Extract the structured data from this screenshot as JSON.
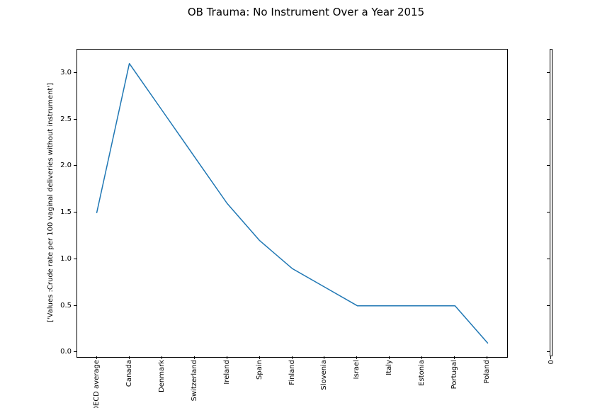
{
  "title": "OB Trauma: No Instrument Over a Year 2015",
  "chart_data": {
    "type": "line",
    "title": "OB Trauma: No Instrument Over a Year 2015",
    "xlabel": "",
    "ylabel": "['Values :Crude rate per 100 vaginal deliveries without instrument']",
    "categories": [
      "OECD average",
      "Canada",
      "Denmark",
      "Switzerland",
      "Ireland",
      "Spain",
      "Finland",
      "Slovenia",
      "Israel",
      "Italy",
      "Estonia",
      "Portugal",
      "Poland"
    ],
    "values": [
      1.5,
      3.1,
      2.6,
      2.1,
      1.6,
      1.2,
      0.9,
      0.7,
      0.5,
      0.5,
      0.5,
      0.5,
      0.1
    ],
    "yticks": [
      0.0,
      0.5,
      1.0,
      1.5,
      2.0,
      2.5,
      3.0
    ],
    "ytick_labels": [
      "0.0",
      "0.5",
      "1.0",
      "1.5",
      "2.0",
      "2.5",
      "3.0"
    ],
    "xlim": [
      -0.6,
      12.6
    ],
    "ylim": [
      -0.05,
      3.25
    ],
    "grid": false,
    "legend": null,
    "line_color": "#1f77b4",
    "xtick_rotation_deg": 90
  },
  "secondary_axes": {
    "xtick_label": "0"
  }
}
